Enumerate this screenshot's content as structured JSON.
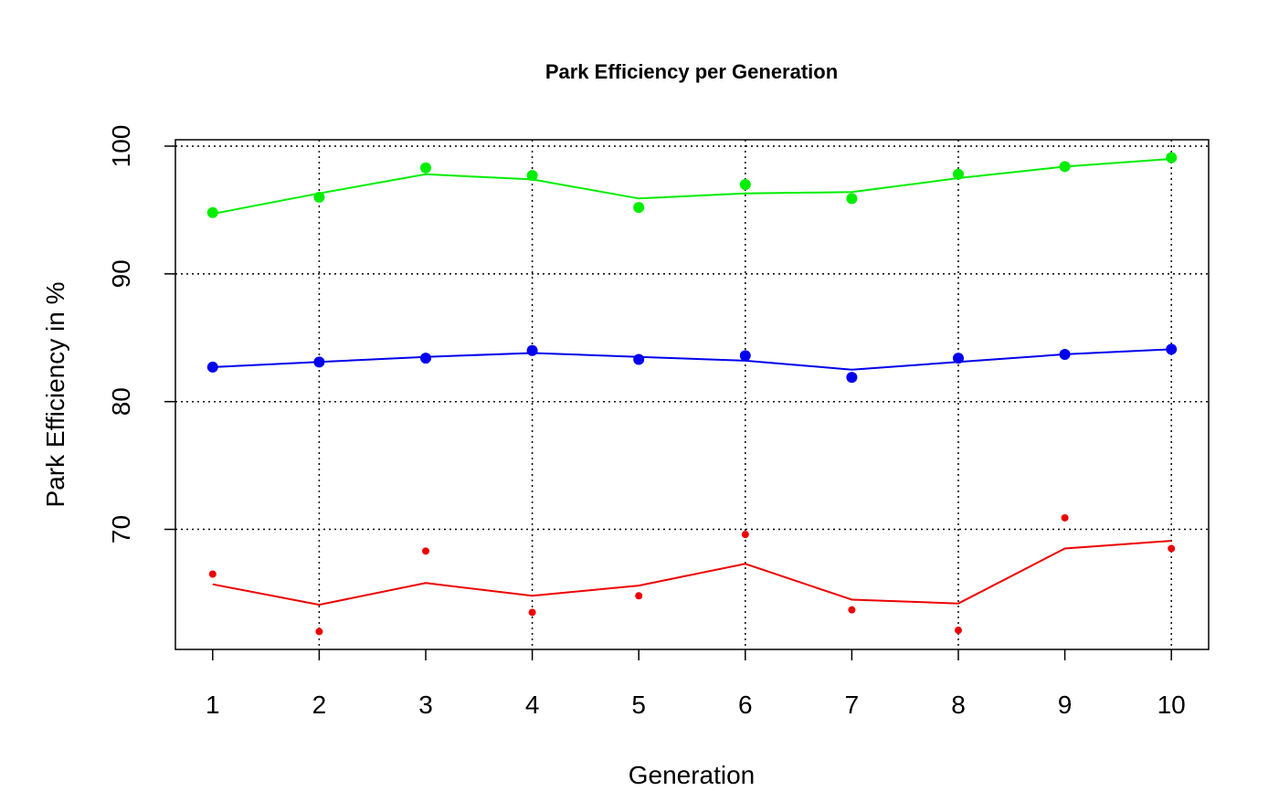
{
  "chart_data": {
    "type": "line",
    "title": "Park Efficiency per Generation",
    "xlabel": "Generation",
    "ylabel": "Park Efficiency in %",
    "x": [
      1,
      2,
      3,
      4,
      5,
      6,
      7,
      8,
      9,
      10
    ],
    "xlim": [
      0.65,
      10.35
    ],
    "ylim": [
      60.6,
      100.5
    ],
    "yticks": [
      70,
      80,
      90,
      100
    ],
    "grid": true,
    "series": [
      {
        "color": "#00ee00",
        "points": [
          94.8,
          96.0,
          98.3,
          97.7,
          95.2,
          97.0,
          95.9,
          97.8,
          98.4,
          99.1
        ],
        "trend": [
          94.7,
          96.3,
          97.8,
          97.4,
          95.9,
          96.3,
          96.4,
          97.5,
          98.4,
          99.0
        ],
        "point_size": "large"
      },
      {
        "color": "#0000ee",
        "points": [
          82.7,
          83.1,
          83.4,
          84.0,
          83.3,
          83.6,
          81.9,
          83.4,
          83.7,
          84.1
        ],
        "trend": [
          82.7,
          83.1,
          83.5,
          83.8,
          83.5,
          83.2,
          82.5,
          83.1,
          83.7,
          84.1
        ],
        "point_size": "large"
      },
      {
        "color": "#ee0000",
        "points": [
          66.5,
          62.0,
          68.3,
          63.5,
          64.8,
          69.6,
          63.7,
          62.1,
          70.9,
          68.5
        ],
        "trend": [
          65.7,
          64.1,
          65.8,
          64.8,
          65.6,
          67.3,
          64.5,
          64.2,
          68.5,
          69.1
        ],
        "point_size": "small"
      }
    ]
  }
}
